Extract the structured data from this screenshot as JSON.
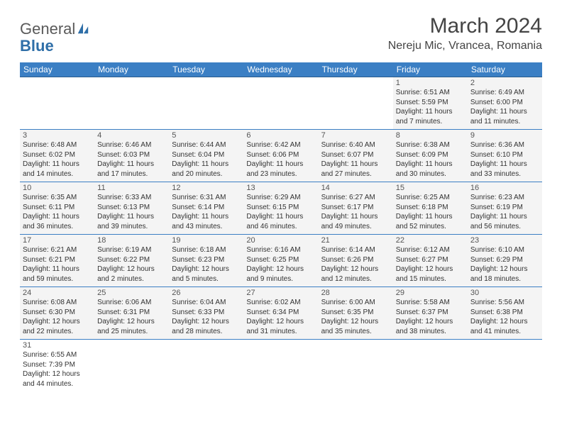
{
  "logo": {
    "text1": "General",
    "text2": "Blue"
  },
  "title": "March 2024",
  "location": "Nereju Mic, Vrancea, Romania",
  "colors": {
    "header_bg": "#3b7fc4",
    "header_text": "#ffffff",
    "border": "#3b7fc4",
    "cell_bg": "#f4f4f4",
    "text": "#333333",
    "logo_blue": "#2f6fa8"
  },
  "weekdays": [
    "Sunday",
    "Monday",
    "Tuesday",
    "Wednesday",
    "Thursday",
    "Friday",
    "Saturday"
  ],
  "weeks": [
    [
      null,
      null,
      null,
      null,
      null,
      {
        "n": "1",
        "sr": "Sunrise: 6:51 AM",
        "ss": "Sunset: 5:59 PM",
        "d1": "Daylight: 11 hours",
        "d2": "and 7 minutes."
      },
      {
        "n": "2",
        "sr": "Sunrise: 6:49 AM",
        "ss": "Sunset: 6:00 PM",
        "d1": "Daylight: 11 hours",
        "d2": "and 11 minutes."
      }
    ],
    [
      {
        "n": "3",
        "sr": "Sunrise: 6:48 AM",
        "ss": "Sunset: 6:02 PM",
        "d1": "Daylight: 11 hours",
        "d2": "and 14 minutes."
      },
      {
        "n": "4",
        "sr": "Sunrise: 6:46 AM",
        "ss": "Sunset: 6:03 PM",
        "d1": "Daylight: 11 hours",
        "d2": "and 17 minutes."
      },
      {
        "n": "5",
        "sr": "Sunrise: 6:44 AM",
        "ss": "Sunset: 6:04 PM",
        "d1": "Daylight: 11 hours",
        "d2": "and 20 minutes."
      },
      {
        "n": "6",
        "sr": "Sunrise: 6:42 AM",
        "ss": "Sunset: 6:06 PM",
        "d1": "Daylight: 11 hours",
        "d2": "and 23 minutes."
      },
      {
        "n": "7",
        "sr": "Sunrise: 6:40 AM",
        "ss": "Sunset: 6:07 PM",
        "d1": "Daylight: 11 hours",
        "d2": "and 27 minutes."
      },
      {
        "n": "8",
        "sr": "Sunrise: 6:38 AM",
        "ss": "Sunset: 6:09 PM",
        "d1": "Daylight: 11 hours",
        "d2": "and 30 minutes."
      },
      {
        "n": "9",
        "sr": "Sunrise: 6:36 AM",
        "ss": "Sunset: 6:10 PM",
        "d1": "Daylight: 11 hours",
        "d2": "and 33 minutes."
      }
    ],
    [
      {
        "n": "10",
        "sr": "Sunrise: 6:35 AM",
        "ss": "Sunset: 6:11 PM",
        "d1": "Daylight: 11 hours",
        "d2": "and 36 minutes."
      },
      {
        "n": "11",
        "sr": "Sunrise: 6:33 AM",
        "ss": "Sunset: 6:13 PM",
        "d1": "Daylight: 11 hours",
        "d2": "and 39 minutes."
      },
      {
        "n": "12",
        "sr": "Sunrise: 6:31 AM",
        "ss": "Sunset: 6:14 PM",
        "d1": "Daylight: 11 hours",
        "d2": "and 43 minutes."
      },
      {
        "n": "13",
        "sr": "Sunrise: 6:29 AM",
        "ss": "Sunset: 6:15 PM",
        "d1": "Daylight: 11 hours",
        "d2": "and 46 minutes."
      },
      {
        "n": "14",
        "sr": "Sunrise: 6:27 AM",
        "ss": "Sunset: 6:17 PM",
        "d1": "Daylight: 11 hours",
        "d2": "and 49 minutes."
      },
      {
        "n": "15",
        "sr": "Sunrise: 6:25 AM",
        "ss": "Sunset: 6:18 PM",
        "d1": "Daylight: 11 hours",
        "d2": "and 52 minutes."
      },
      {
        "n": "16",
        "sr": "Sunrise: 6:23 AM",
        "ss": "Sunset: 6:19 PM",
        "d1": "Daylight: 11 hours",
        "d2": "and 56 minutes."
      }
    ],
    [
      {
        "n": "17",
        "sr": "Sunrise: 6:21 AM",
        "ss": "Sunset: 6:21 PM",
        "d1": "Daylight: 11 hours",
        "d2": "and 59 minutes."
      },
      {
        "n": "18",
        "sr": "Sunrise: 6:19 AM",
        "ss": "Sunset: 6:22 PM",
        "d1": "Daylight: 12 hours",
        "d2": "and 2 minutes."
      },
      {
        "n": "19",
        "sr": "Sunrise: 6:18 AM",
        "ss": "Sunset: 6:23 PM",
        "d1": "Daylight: 12 hours",
        "d2": "and 5 minutes."
      },
      {
        "n": "20",
        "sr": "Sunrise: 6:16 AM",
        "ss": "Sunset: 6:25 PM",
        "d1": "Daylight: 12 hours",
        "d2": "and 9 minutes."
      },
      {
        "n": "21",
        "sr": "Sunrise: 6:14 AM",
        "ss": "Sunset: 6:26 PM",
        "d1": "Daylight: 12 hours",
        "d2": "and 12 minutes."
      },
      {
        "n": "22",
        "sr": "Sunrise: 6:12 AM",
        "ss": "Sunset: 6:27 PM",
        "d1": "Daylight: 12 hours",
        "d2": "and 15 minutes."
      },
      {
        "n": "23",
        "sr": "Sunrise: 6:10 AM",
        "ss": "Sunset: 6:29 PM",
        "d1": "Daylight: 12 hours",
        "d2": "and 18 minutes."
      }
    ],
    [
      {
        "n": "24",
        "sr": "Sunrise: 6:08 AM",
        "ss": "Sunset: 6:30 PM",
        "d1": "Daylight: 12 hours",
        "d2": "and 22 minutes."
      },
      {
        "n": "25",
        "sr": "Sunrise: 6:06 AM",
        "ss": "Sunset: 6:31 PM",
        "d1": "Daylight: 12 hours",
        "d2": "and 25 minutes."
      },
      {
        "n": "26",
        "sr": "Sunrise: 6:04 AM",
        "ss": "Sunset: 6:33 PM",
        "d1": "Daylight: 12 hours",
        "d2": "and 28 minutes."
      },
      {
        "n": "27",
        "sr": "Sunrise: 6:02 AM",
        "ss": "Sunset: 6:34 PM",
        "d1": "Daylight: 12 hours",
        "d2": "and 31 minutes."
      },
      {
        "n": "28",
        "sr": "Sunrise: 6:00 AM",
        "ss": "Sunset: 6:35 PM",
        "d1": "Daylight: 12 hours",
        "d2": "and 35 minutes."
      },
      {
        "n": "29",
        "sr": "Sunrise: 5:58 AM",
        "ss": "Sunset: 6:37 PM",
        "d1": "Daylight: 12 hours",
        "d2": "and 38 minutes."
      },
      {
        "n": "30",
        "sr": "Sunrise: 5:56 AM",
        "ss": "Sunset: 6:38 PM",
        "d1": "Daylight: 12 hours",
        "d2": "and 41 minutes."
      }
    ],
    [
      {
        "n": "31",
        "sr": "Sunrise: 6:55 AM",
        "ss": "Sunset: 7:39 PM",
        "d1": "Daylight: 12 hours",
        "d2": "and 44 minutes."
      },
      null,
      null,
      null,
      null,
      null,
      null
    ]
  ]
}
